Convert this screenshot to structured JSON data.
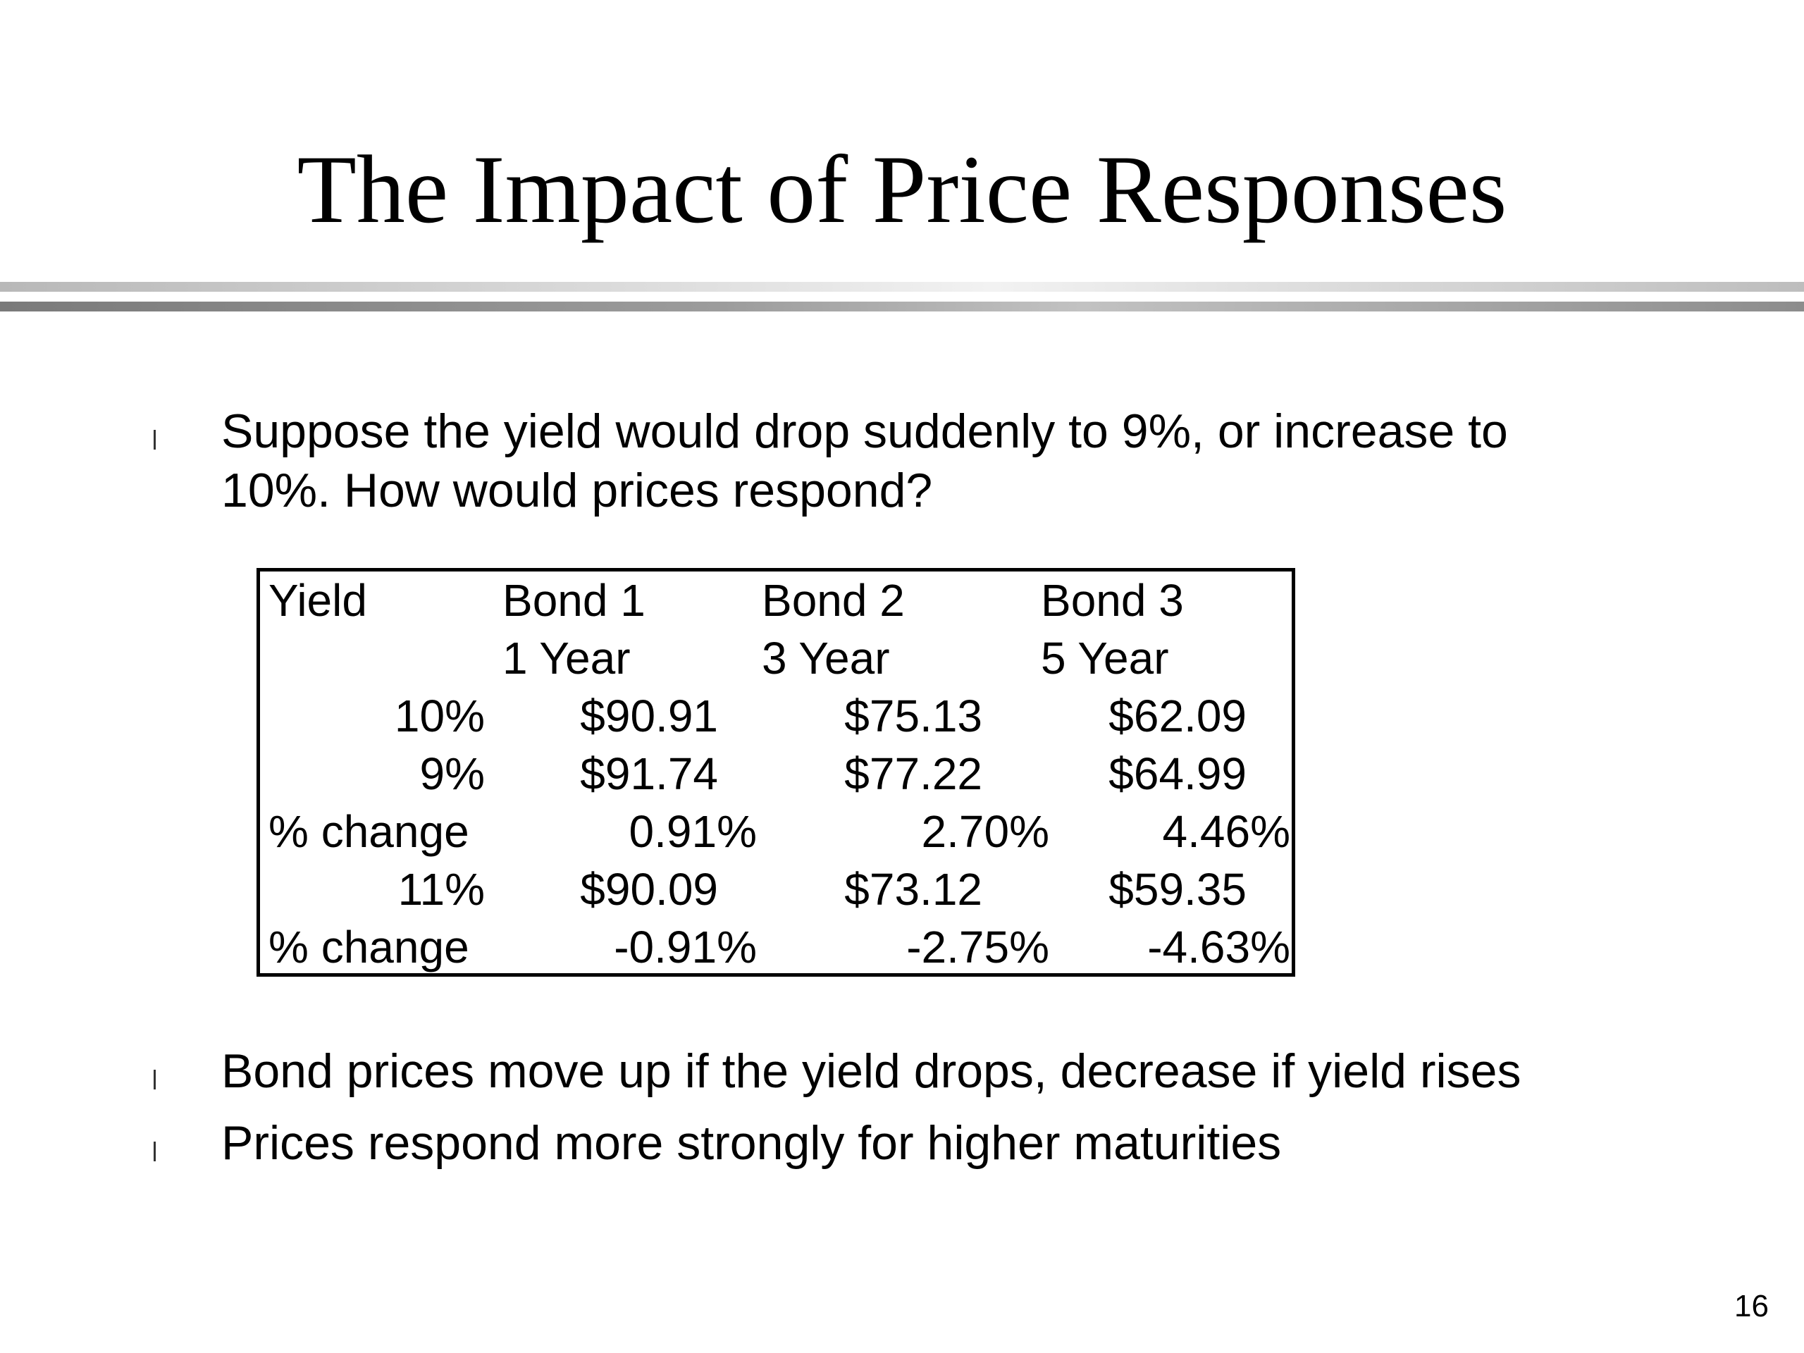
{
  "slide": {
    "title": "The Impact of Price Responses",
    "page_number": "16"
  },
  "bullets": [
    {
      "marker": "l",
      "lines": [
        "Suppose the yield would drop suddenly to 9%, or increase to",
        "10%. How would prices respond?"
      ]
    },
    {
      "marker": "l",
      "lines": [
        "Bond prices move up if the yield drops, decrease if yield rises"
      ]
    },
    {
      "marker": "l",
      "lines": [
        "Prices respond more strongly for higher maturities"
      ]
    }
  ],
  "table": {
    "header": {
      "yield": "Yield",
      "bond1": "Bond 1",
      "bond2": "Bond 2",
      "bond3": "Bond 3"
    },
    "maturity": {
      "yield": "",
      "bond1": "1 Year",
      "bond2": "3 Year",
      "bond3": "5 Year"
    },
    "rows": [
      {
        "label": "10%",
        "bond1": "$90.91",
        "bond2": "$75.13",
        "bond3": "$62.09"
      },
      {
        "label": "9%",
        "bond1": "$91.74",
        "bond2": "$77.22",
        "bond3": "$64.99"
      },
      {
        "label": "% change",
        "bond1": "0.91%",
        "bond2": "2.70%",
        "bond3": "4.46%"
      },
      {
        "label": "11%",
        "bond1": "$90.09",
        "bond2": "$73.12",
        "bond3": "$59.35"
      },
      {
        "label": "% change",
        "bond1": "-0.91%",
        "bond2": "-2.75%",
        "bond3": "-4.63%"
      }
    ]
  }
}
